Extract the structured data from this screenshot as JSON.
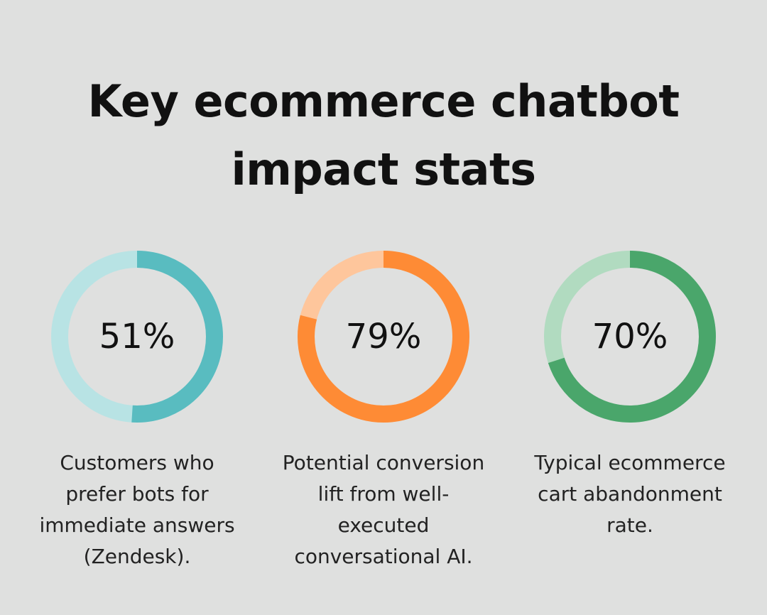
{
  "title_lines": [
    "Key ecommerce chatbot",
    "impact stats"
  ],
  "chart_data": [
    {
      "type": "pie",
      "variant": "donut",
      "value": 51,
      "label": "51%",
      "caption_lines": [
        "Customers who",
        "prefer bots for",
        "immediate answers",
        "(Zendesk)."
      ],
      "color": "#59bcc0",
      "track_color": "#b8e3e4"
    },
    {
      "type": "pie",
      "variant": "donut",
      "value": 79,
      "label": "79%",
      "caption_lines": [
        "Potential conversion",
        "lift from well-",
        "executed",
        "conversational AI."
      ],
      "color": "#fe8b35",
      "track_color": "#fec69c"
    },
    {
      "type": "pie",
      "variant": "donut",
      "value": 70,
      "label": "70%",
      "caption_lines": [
        "Typical ecommerce",
        "cart abandonment",
        "rate."
      ],
      "color": "#4aa66b",
      "track_color": "#b1dbc0"
    }
  ]
}
